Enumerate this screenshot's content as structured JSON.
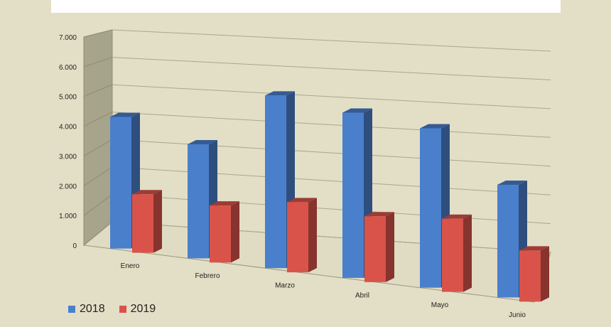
{
  "chart_data": {
    "type": "bar",
    "title": "",
    "xlabel": "",
    "ylabel": "",
    "categories": [
      "Enero",
      "Febrero",
      "Marzo",
      "Abril",
      "Mayo",
      "Junio"
    ],
    "series": [
      {
        "name": "2018",
        "values": [
          4500,
          3900,
          5900,
          5650,
          5450,
          3850
        ],
        "color": "#4a7fcc"
      },
      {
        "name": "2019",
        "values": [
          2000,
          1950,
          2400,
          2250,
          2500,
          1750
        ],
        "color": "#d9534a"
      }
    ],
    "y_ticks": [
      "0",
      "1.000",
      "2.000",
      "3.000",
      "4.000",
      "5.000",
      "6.000",
      "7.000"
    ],
    "ylim": [
      0,
      7000
    ],
    "grid": true,
    "legend_position": "bottom-left"
  }
}
